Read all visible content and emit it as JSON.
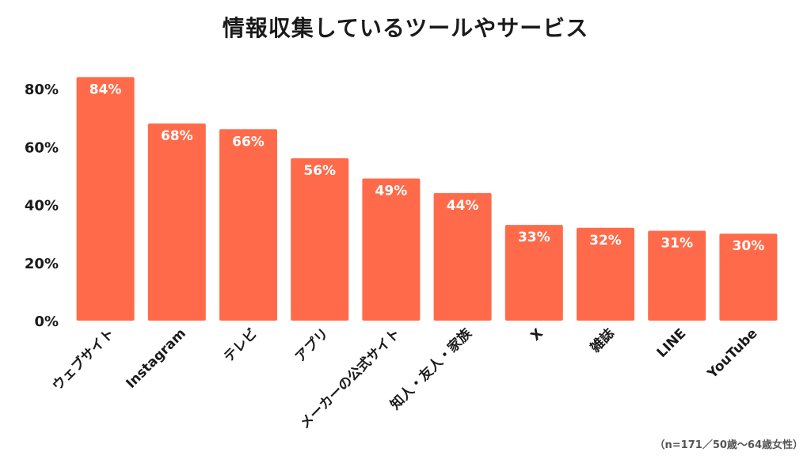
{
  "chart_data": {
    "type": "bar",
    "title": "情報収集しているツールやサービス",
    "categories": [
      "ウェブサイト",
      "Instagram",
      "テレビ",
      "アプリ",
      "メーカーの公式サイト",
      "知人・友人・家族",
      "X",
      "雑誌",
      "LINE",
      "YouTube"
    ],
    "values": [
      84,
      68,
      66,
      56,
      49,
      44,
      33,
      32,
      31,
      30
    ],
    "value_labels": [
      "84%",
      "68%",
      "66%",
      "56%",
      "49%",
      "44%",
      "33%",
      "32%",
      "31%",
      "30%"
    ],
    "xlabel": "",
    "ylabel": "",
    "ylim": [
      0,
      80
    ],
    "yticks": [
      0,
      20,
      40,
      60,
      80
    ],
    "ytick_labels": [
      "0%",
      "20%",
      "40%",
      "60%",
      "80%"
    ],
    "grid": false,
    "bar_color": "#FF6B4A",
    "note": "（n=171／50歳〜64歳女性）"
  }
}
